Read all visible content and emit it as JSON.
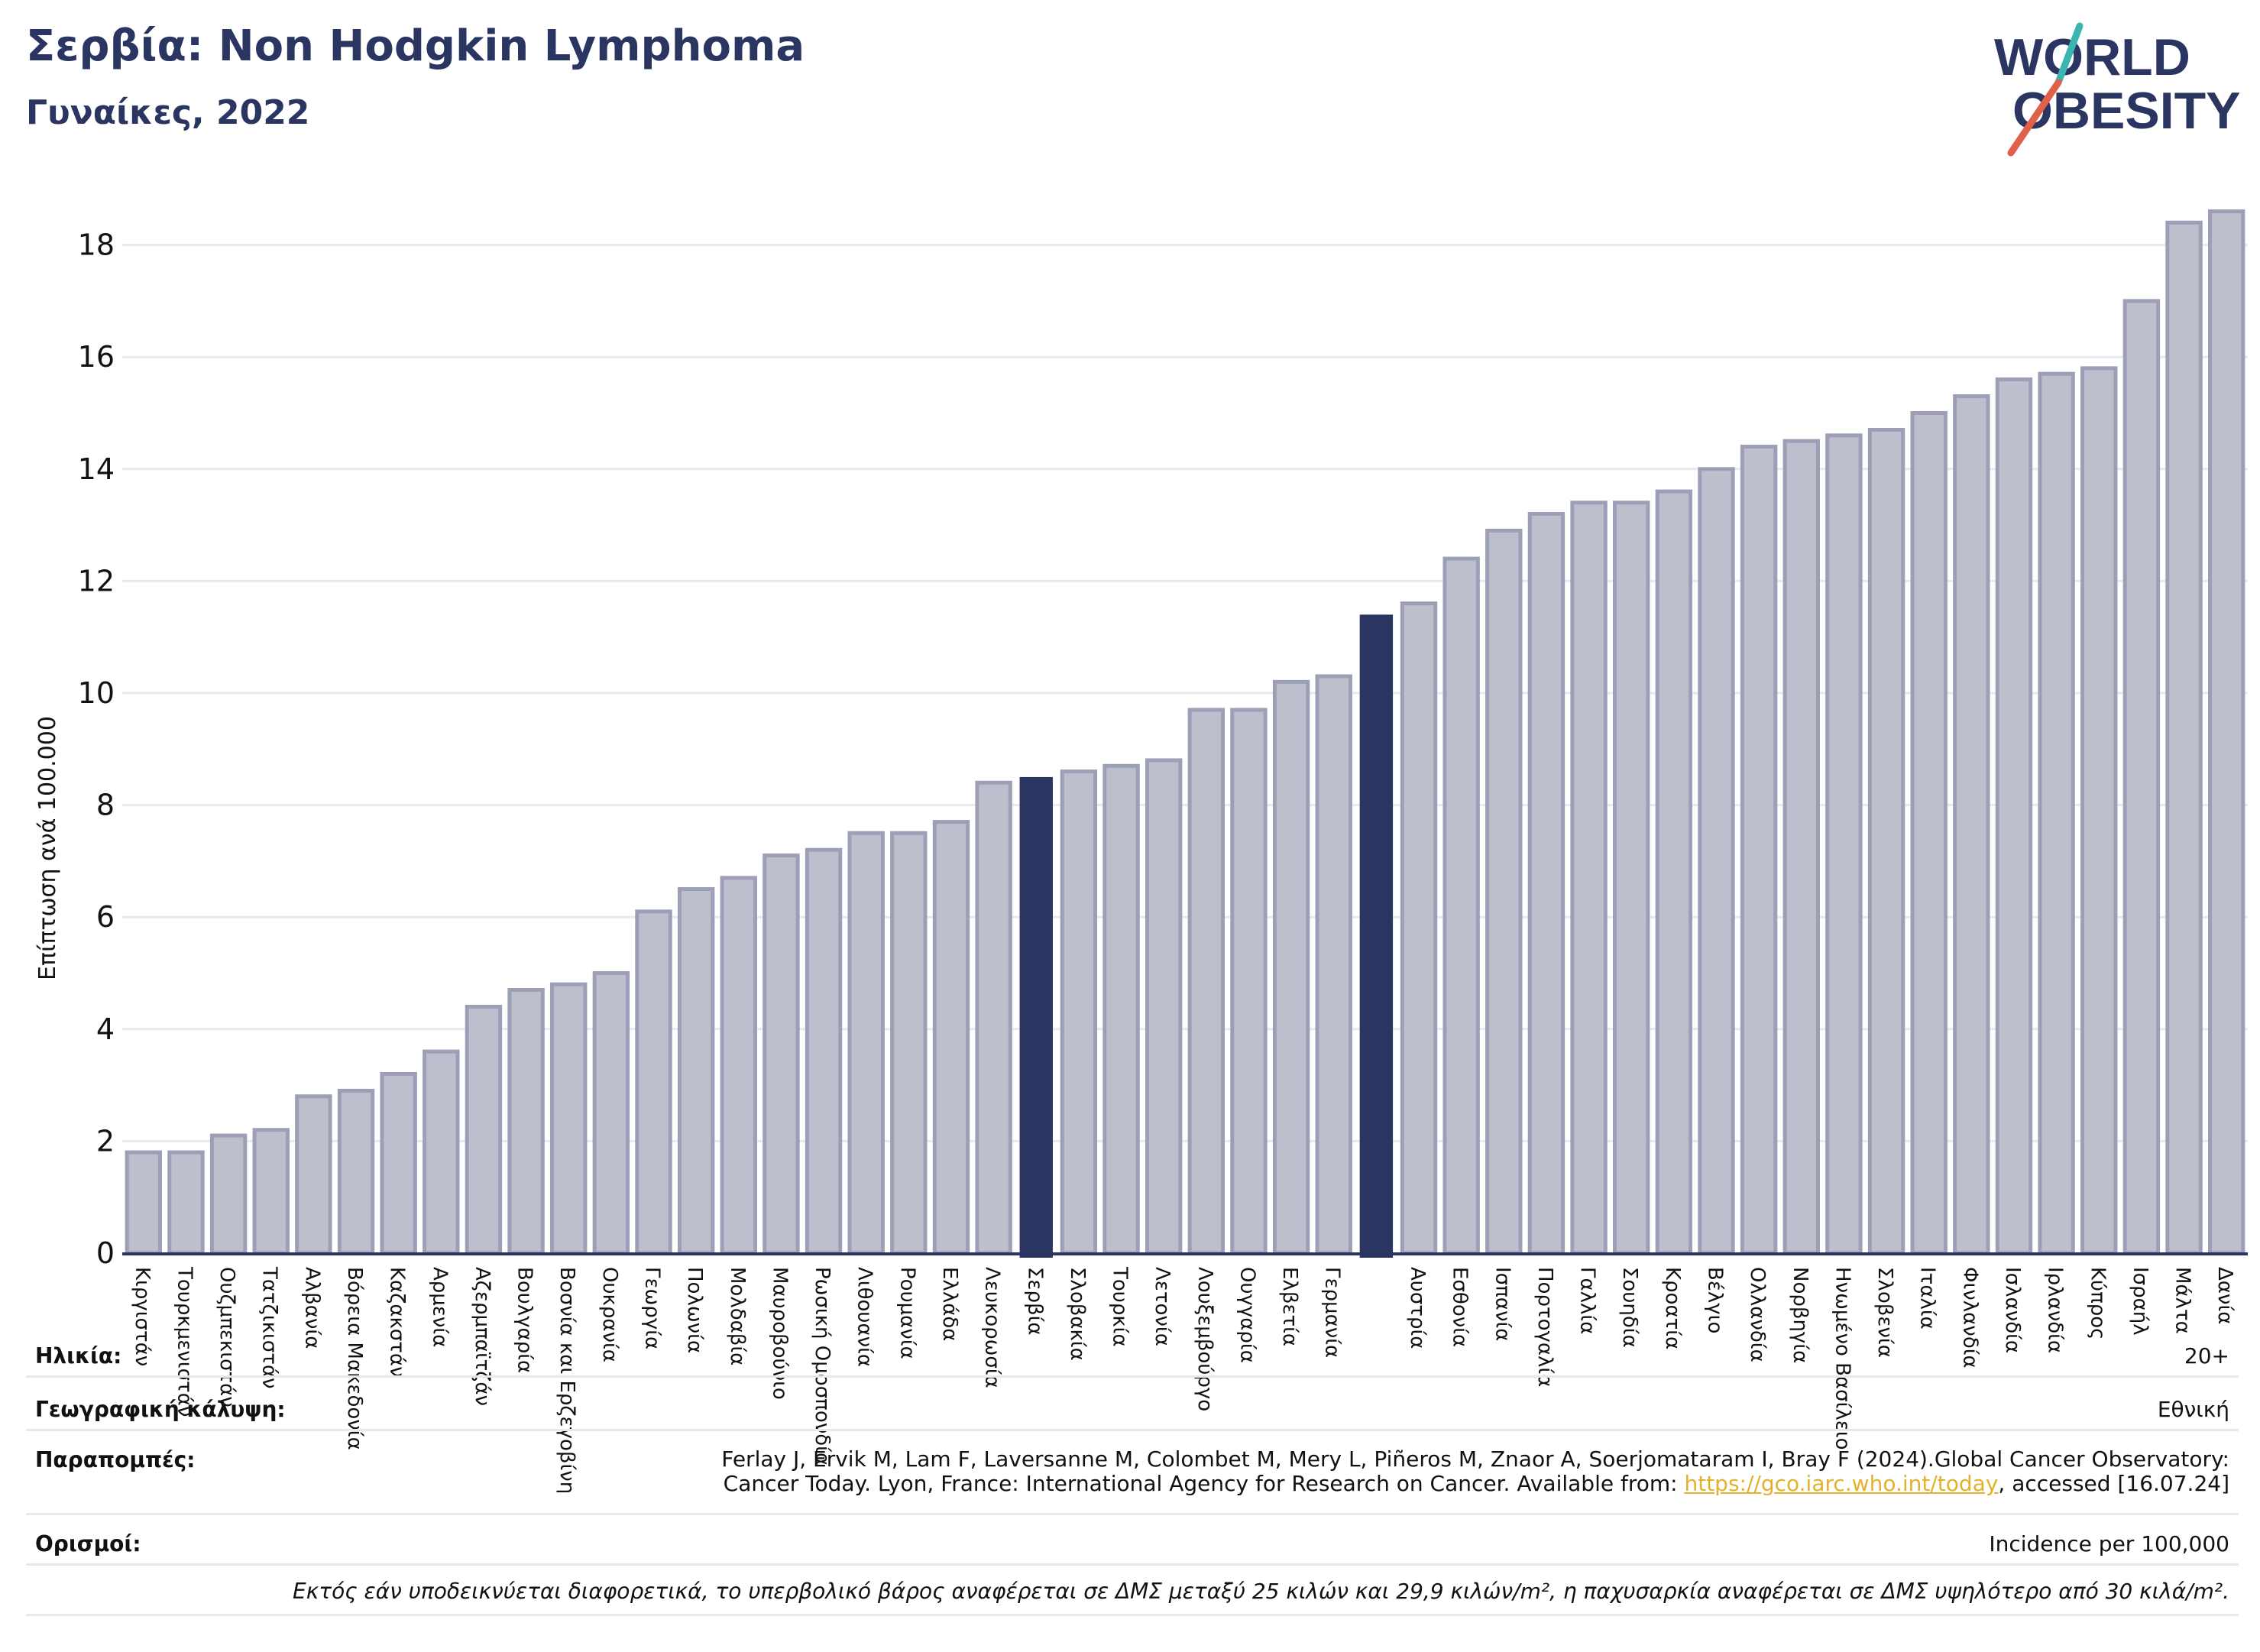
{
  "header": {
    "title": "Σερβία: Non Hodgkin Lymphoma",
    "subtitle": "Γυναίκες, 2022"
  },
  "logo": {
    "line1": "WORLD",
    "line2": "OBESITY",
    "colors": {
      "text": "#2a3561",
      "slash_top": "#3ab5b0",
      "slash_bottom": "#e0604a"
    }
  },
  "chart_data": {
    "type": "bar",
    "ylabel": "Επίπτωση ανά 100.000",
    "ylim": [
      0,
      19
    ],
    "yticks": [
      0,
      2,
      4,
      6,
      8,
      10,
      12,
      14,
      16,
      18
    ],
    "grid": true,
    "colors": {
      "bar": "#bdbfcd",
      "bar_edge": "#9c9fb6",
      "highlight": "#2a3561",
      "axis": "#2a3561",
      "grid": "#e6e9ef"
    },
    "categories": [
      "Κιργιστάν",
      "Τουρκμενιστάν",
      "Ουζμπεκιστάν",
      "Τατζικιστάν",
      "Αλβανία",
      "Βόρεια Μακεδονία",
      "Καζακστάν",
      "Αρμενία",
      "Αζερμπαϊτζάν",
      "Βουλγαρία",
      "Βοσνία και Ερζεγοβίνη",
      "Ουκρανία",
      "Γεωργία",
      "Πολωνία",
      "Μολδαβία",
      "Μαυροβούνιο",
      "Ρωσική Ομοσπονδία",
      "Λιθουανία",
      "Ρουμανία",
      "Ελλάδα",
      "Λευκορωσία",
      "Σερβία",
      "Σλοβακία",
      "Τουρκία",
      "Λετονία",
      "Λουξεμβούργο",
      "Ουγγαρία",
      "Ελβετία",
      "Γερμανία",
      "",
      "Αυστρία",
      "Εσθονία",
      "Ισπανία",
      "Πορτογαλία",
      "Γαλλία",
      "Σουηδία",
      "Κροατία",
      "Βέλγιο",
      "Ολλανδία",
      "Νορβηγία",
      "Ηνωμένο Βασίλειο",
      "Σλοβενία",
      "Ιταλία",
      "Φινλανδία",
      "Ισλανδία",
      "Ιρλανδία",
      "Κύπρος",
      "Ισραήλ",
      "Μάλτα",
      "Δανία"
    ],
    "values": [
      1.8,
      1.8,
      2.1,
      2.2,
      2.8,
      2.9,
      3.2,
      3.6,
      4.4,
      4.7,
      4.8,
      5.0,
      6.1,
      6.5,
      6.7,
      7.1,
      7.2,
      7.5,
      7.5,
      7.7,
      8.4,
      8.5,
      8.6,
      8.7,
      8.8,
      9.7,
      9.7,
      10.2,
      10.3,
      11.4,
      11.6,
      12.4,
      12.9,
      13.2,
      13.4,
      13.4,
      13.6,
      14.0,
      14.4,
      14.5,
      14.6,
      14.7,
      15.0,
      15.3,
      15.6,
      15.7,
      15.8,
      17.0,
      18.4,
      18.6
    ],
    "highlight_index": [
      21,
      29
    ]
  },
  "info": {
    "age_label": "Ηλικία:",
    "age_value": "20+",
    "coverage_label": "Γεωγραφική κάλυψη:",
    "coverage_value": "Εθνική",
    "refs_label": "Παραπομπές:",
    "refs_line1": "Ferlay J, Ervik M, Lam F, Laversanne M, Colombet M, Mery L, Piñeros M, Znaor A, Soerjomataram I, Bray F (2024).Global Cancer Observatory:",
    "refs_line2_pre": "Cancer Today. Lyon, France: International Agency for Research on Cancer. Available from: ",
    "refs_link": "https://gco.iarc.who.int/today",
    "refs_line2_post": ", accessed [16.07.24]",
    "defs_label": "Ορισμοί:",
    "defs_value": "Incidence per 100,000"
  },
  "footnote": "Εκτός εάν υποδεικνύεται διαφορετικά, το υπερβολικό βάρος αναφέρεται σε ΔΜΣ μεταξύ 25 κιλών και 29,9 κιλών/m², η παχυσαρκία αναφέρεται σε ΔΜΣ υψηλότερο από 30 κιλά/m²."
}
